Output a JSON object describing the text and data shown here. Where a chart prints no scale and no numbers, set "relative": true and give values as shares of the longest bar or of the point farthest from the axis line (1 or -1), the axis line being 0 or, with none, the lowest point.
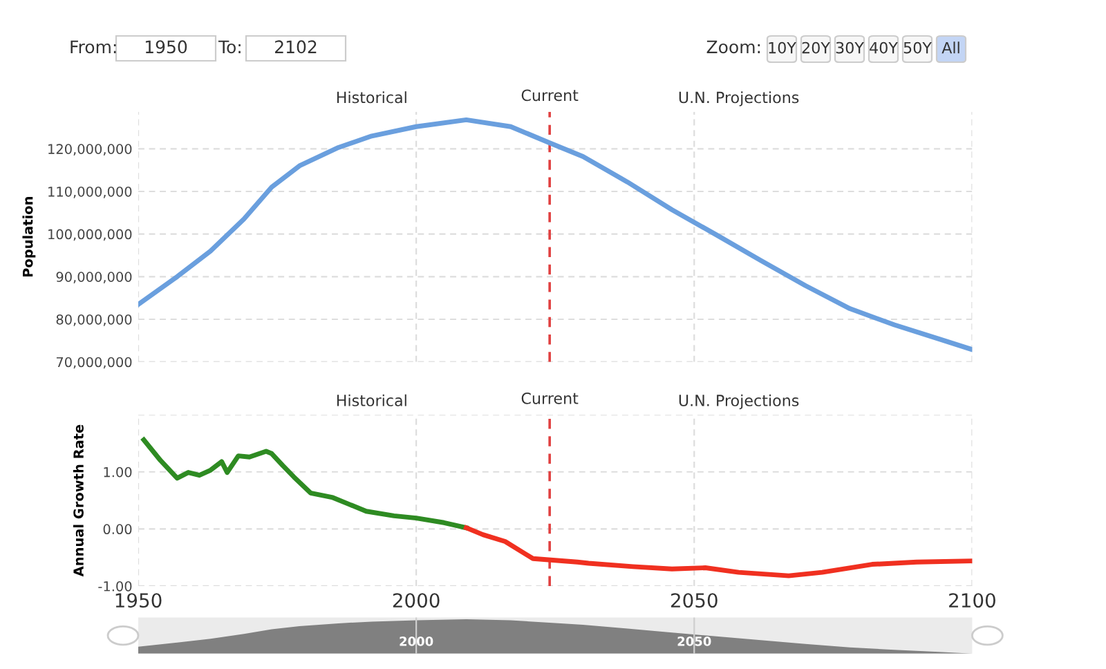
{
  "chart_data": [
    {
      "type": "line",
      "ylabel": "Population",
      "annotations": [
        "Historical",
        "U.N. Projections",
        "From:",
        "1950",
        "To:",
        "2102",
        "Zoom:",
        "10Y",
        "20Y",
        "30Y",
        "40Y",
        "50Y",
        "All"
      ],
      "series": [
        {
          "color": "#6a9fde",
          "x": [
            1950,
            1957,
            1963,
            1969,
            1974,
            1979,
            1986,
            1992,
            2000,
            2009,
            2017,
            2024,
            2030,
            2038,
            2046,
            2054,
            2062,
            2070,
            2078,
            2086,
            2094,
            2100
          ],
          "values": [
            83500000,
            90000000,
            96000000,
            103500000,
            111000000,
            116000000,
            120300000,
            123000000,
            125200000,
            126800000,
            125200000,
            121400000,
            118200000,
            112200000,
            105700000,
            99800000,
            93800000,
            87900000,
            82500000,
            78700000,
            75400000,
            72900000
          ]
        }
      ],
      "xlim": [
        1950,
        2100
      ],
      "xticks": [
        1950,
        2000,
        2050,
        2100
      ],
      "ylim": [
        70000000,
        128700000
      ],
      "yticks": [
        {
          "value": 70000000,
          "label": "70,000,000"
        },
        {
          "value": 80000000,
          "label": "80,000,000"
        },
        {
          "value": 90000000,
          "label": "90,000,000"
        },
        {
          "value": 100000000,
          "label": "100,000,000"
        },
        {
          "value": 110000000,
          "label": "110,000,000"
        },
        {
          "value": 120000000,
          "label": "120,000,000"
        }
      ],
      "tick_labels": "y",
      "grid": true,
      "line_style": "solid",
      "marker": "none",
      "ref_lines": [
        {
          "axis": "x",
          "value": 2024,
          "label": "Current",
          "color": "#e04040",
          "line_style": "dashed"
        }
      ]
    },
    {
      "type": "line",
      "ylabel": "Annual Growth Rate",
      "annotations": [
        "Historical",
        "U.N. Projections"
      ],
      "series": [
        {
          "color": "#2e8b22",
          "x": [
            1951,
            1954,
            1957,
            1959,
            1961,
            1963,
            1965,
            1966,
            1968,
            1970,
            1973,
            1974,
            1976,
            1978,
            1981,
            1985,
            1988,
            1991,
            1996,
            2000,
            2005,
            2009
          ],
          "values": [
            1.56,
            1.2,
            0.89,
            0.99,
            0.94,
            1.03,
            1.18,
            0.99,
            1.28,
            1.26,
            1.36,
            1.32,
            1.11,
            0.91,
            0.63,
            0.55,
            0.43,
            0.31,
            0.23,
            0.19,
            0.11,
            0.02
          ]
        },
        {
          "color": "#f03020",
          "x": [
            2009,
            2012,
            2016,
            2021,
            2029,
            2031,
            2039,
            2046,
            2052,
            2058,
            2067,
            2073,
            2082,
            2090,
            2100
          ],
          "values": [
            0.02,
            -0.1,
            -0.22,
            -0.52,
            -0.58,
            -0.6,
            -0.66,
            -0.7,
            -0.68,
            -0.76,
            -0.82,
            -0.76,
            -0.62,
            -0.58,
            -0.56
          ]
        }
      ],
      "xlim": [
        1950,
        2100
      ],
      "xticks": [
        1950,
        2000,
        2050,
        2100
      ],
      "ylim": [
        -1,
        2
      ],
      "yticks": [
        {
          "value": -1,
          "label": "-1.00"
        },
        {
          "value": 0,
          "label": "0.00"
        },
        {
          "value": 1,
          "label": "1.00"
        },
        {
          "value": 2,
          "label": null
        }
      ],
      "grid": true,
      "line_style": "solid",
      "marker": "none",
      "ref_lines": [
        {
          "axis": "x",
          "value": 2024,
          "label": "Current",
          "color": "#e04040",
          "line_style": "dashed"
        }
      ]
    },
    {
      "type": "area",
      "relative": true,
      "color": "#808080",
      "x": [
        1950,
        1957,
        1963,
        1969,
        1974,
        1979,
        1986,
        1992,
        2000,
        2009,
        2017,
        2024,
        2030,
        2038,
        2046,
        2054,
        2062,
        2070,
        2078,
        2086,
        2094,
        2100
      ],
      "values": [
        0.2,
        0.32,
        0.43,
        0.57,
        0.71,
        0.8,
        0.88,
        0.93,
        0.97,
        1.0,
        0.97,
        0.9,
        0.84,
        0.73,
        0.61,
        0.5,
        0.39,
        0.28,
        0.18,
        0.11,
        0.05,
        0
      ],
      "xlim": [
        1950,
        2100
      ],
      "xticks": [
        2000,
        2050
      ],
      "grid": "x"
    }
  ]
}
